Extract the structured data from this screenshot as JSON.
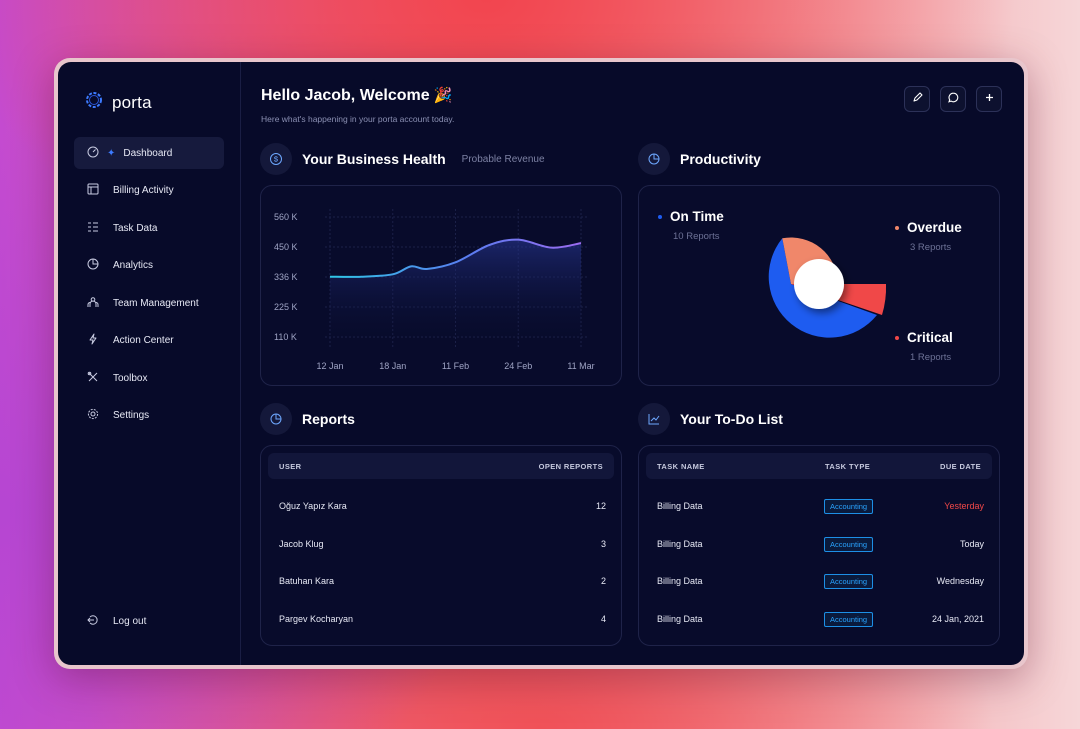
{
  "brand": {
    "name": "porta"
  },
  "sidebar": {
    "items": [
      {
        "label": "Dashboard",
        "icon": "dashboard-icon",
        "active": true
      },
      {
        "label": "Billing Activity",
        "icon": "billing-icon"
      },
      {
        "label": "Task Data",
        "icon": "task-data-icon"
      },
      {
        "label": "Analytics",
        "icon": "analytics-icon"
      },
      {
        "label": "Team Management",
        "icon": "team-icon"
      },
      {
        "label": "Action Center",
        "icon": "lightning-icon"
      },
      {
        "label": "Toolbox",
        "icon": "tools-icon"
      },
      {
        "label": "Settings",
        "icon": "gear-icon"
      }
    ],
    "logout_label": "Log out"
  },
  "header": {
    "title": "Hello Jacob, Welcome",
    "emoji": "🎉",
    "subtitle": "Here what's happening in your porta account today."
  },
  "business": {
    "title": "Your Business Health",
    "subtitle": "Probable Revenue"
  },
  "chart_data": {
    "type": "area",
    "title": "Your Business Health",
    "subtitle": "Probable Revenue",
    "y_ticks": [
      "560 K",
      "450 K",
      "336 K",
      "225 K",
      "110 K"
    ],
    "x_ticks": [
      "12 Jan",
      "18 Jan",
      "11 Feb",
      "24 Feb",
      "11 Mar"
    ],
    "ylim": [
      110,
      560
    ],
    "y_unit": "K",
    "grid": true,
    "series": [
      {
        "values": [
          [
            "12 Jan",
            336
          ],
          [
            "15 Jan",
            336
          ],
          [
            "18 Jan",
            345
          ],
          [
            "25 Jan",
            375
          ],
          [
            "31 Jan",
            365
          ],
          [
            "11 Feb",
            390
          ],
          [
            "18 Feb",
            455
          ],
          [
            "24 Feb",
            475
          ],
          [
            "4 Mar",
            445
          ],
          [
            "11 Mar",
            462
          ]
        ]
      }
    ]
  },
  "productivity": {
    "title": "Productivity",
    "on_time": {
      "label": "On Time",
      "sub": "10 Reports",
      "value": 10,
      "color": "#1e5cf0"
    },
    "overdue": {
      "label": "Overdue",
      "sub": "3 Reports",
      "value": 3,
      "color": "#f0876a"
    },
    "critical": {
      "label": "Critical",
      "sub": "1 Reports",
      "value": 1,
      "color": "#f04848"
    }
  },
  "reports": {
    "title": "Reports",
    "col_user": "USER",
    "col_open": "OPEN REPORTS",
    "rows": [
      {
        "user": "Oğuz Yapız Kara",
        "open": "12"
      },
      {
        "user": "Jacob Klug",
        "open": "3"
      },
      {
        "user": "Batuhan Kara",
        "open": "2"
      },
      {
        "user": "Pargev Kocharyan",
        "open": "4"
      }
    ]
  },
  "todo": {
    "title": "Your To-Do List",
    "col_task": "TASK NAME",
    "col_type": "TASK TYPE",
    "col_due": "DUE DATE",
    "rows": [
      {
        "task": "Billing Data",
        "type": "Accounting",
        "due": "Yesterday",
        "due_color": "#f04848"
      },
      {
        "task": "Billing Data",
        "type": "Accounting",
        "due": "Today",
        "due_color": "#e7e9f5"
      },
      {
        "task": "Billing Data",
        "type": "Accounting",
        "due": "Wednesday",
        "due_color": "#e7e9f5"
      },
      {
        "task": "Billing Data",
        "type": "Accounting",
        "due": "24 Jan, 2021",
        "due_color": "#e7e9f5"
      }
    ]
  }
}
